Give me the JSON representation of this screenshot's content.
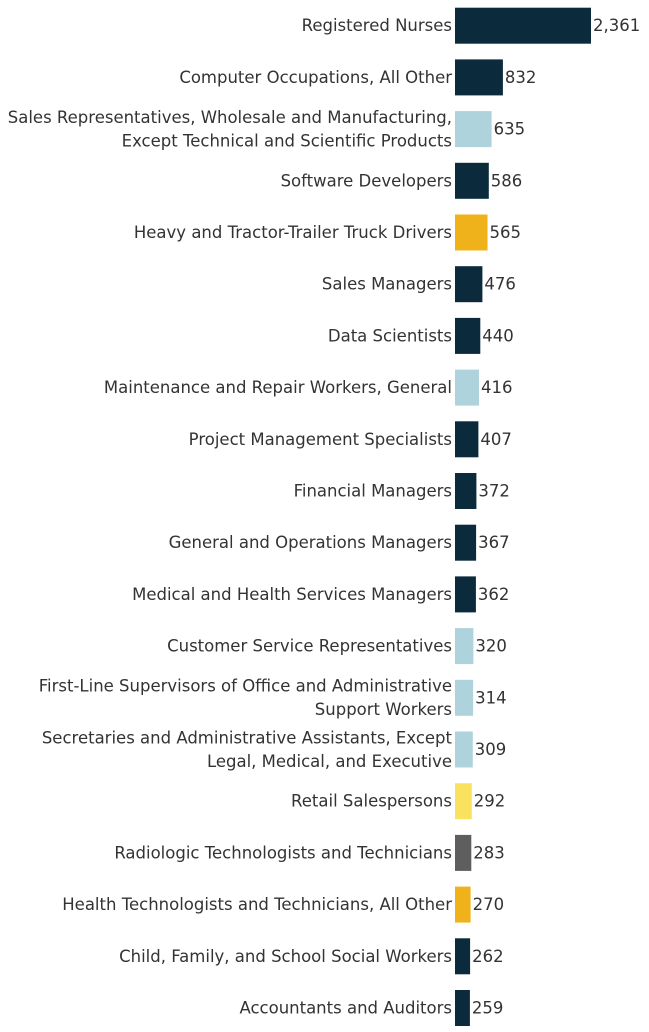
{
  "chart_data": {
    "type": "bar",
    "orientation": "horizontal",
    "categories": [
      [
        "Registered Nurses"
      ],
      [
        "Computer Occupations, All Other"
      ],
      [
        "Sales Representatives, Wholesale and Manufacturing,",
        "Except Technical and Scientific Products"
      ],
      [
        "Software Developers"
      ],
      [
        "Heavy and Tractor-Trailer Truck Drivers"
      ],
      [
        "Sales Managers"
      ],
      [
        "Data Scientists"
      ],
      [
        "Maintenance and Repair Workers, General"
      ],
      [
        "Project Management Specialists"
      ],
      [
        "Financial Managers"
      ],
      [
        "General and Operations Managers"
      ],
      [
        "Medical and Health Services Managers"
      ],
      [
        "Customer Service Representatives"
      ],
      [
        "First-Line Supervisors of Office and Administrative",
        "Support Workers"
      ],
      [
        "Secretaries and Administrative Assistants, Except",
        "Legal, Medical, and Executive"
      ],
      [
        "Retail Salespersons"
      ],
      [
        "Radiologic Technologists and Technicians"
      ],
      [
        "Health Technologists and Technicians, All Other"
      ],
      [
        "Child, Family, and School Social Workers"
      ],
      [
        "Accountants and Auditors"
      ]
    ],
    "values": [
      2361,
      832,
      635,
      586,
      565,
      476,
      440,
      416,
      407,
      372,
      367,
      362,
      320,
      314,
      309,
      292,
      283,
      270,
      262,
      259
    ],
    "value_labels": [
      "2,361",
      "832",
      "635",
      "586",
      "565",
      "476",
      "440",
      "416",
      "407",
      "372",
      "367",
      "362",
      "320",
      "314",
      "309",
      "292",
      "283",
      "270",
      "262",
      "259"
    ],
    "bar_colors": [
      "#0b2a3b",
      "#0b2a3b",
      "#aed3dc",
      "#0b2a3b",
      "#f0b21a",
      "#0b2a3b",
      "#0b2a3b",
      "#aed3dc",
      "#0b2a3b",
      "#0b2a3b",
      "#0b2a3b",
      "#0b2a3b",
      "#aed3dc",
      "#aed3dc",
      "#aed3dc",
      "#fbe25e",
      "#5e5e5e",
      "#f0b21a",
      "#0b2a3b",
      "#0b2a3b"
    ],
    "grid": false,
    "legend": "none",
    "title": "",
    "xlabel": "",
    "ylabel": ""
  }
}
